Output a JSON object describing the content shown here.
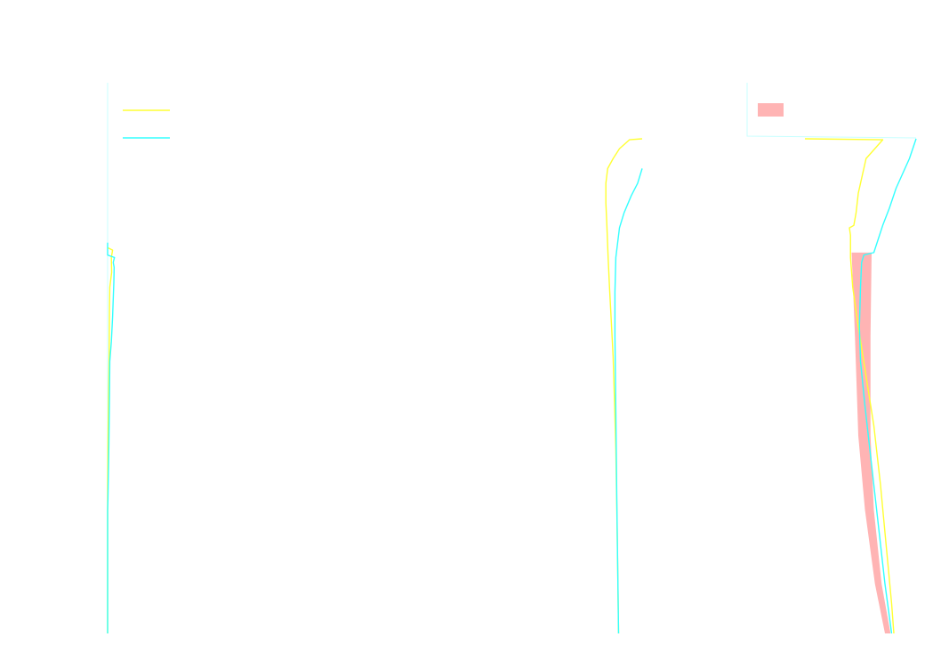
{
  "chart_data": [
    {
      "type": "line",
      "title": "",
      "xlabel": "",
      "ylabel": "",
      "xlim": [
        0,
        100
      ],
      "ylim": [
        0,
        100
      ],
      "grid": false,
      "legend": "top-left",
      "series": [
        {
          "name": "",
          "color": "#ffff33",
          "points": [
            [
              0,
              78
            ],
            [
              8,
              77.5
            ],
            [
              6,
              76
            ],
            [
              6.5,
              73
            ],
            [
              3.5,
              70
            ],
            [
              3,
              66
            ],
            [
              2.5,
              57
            ],
            [
              1.5,
              48
            ],
            [
              0.5,
              38
            ],
            [
              0,
              30
            ],
            [
              0,
              0
            ]
          ]
        },
        {
          "name": "",
          "color": "#33ffff",
          "points": [
            [
              0,
              79
            ],
            [
              0,
              76.5
            ],
            [
              11,
              76
            ],
            [
              9,
              75
            ],
            [
              10.5,
              74
            ],
            [
              10,
              71
            ],
            [
              8,
              64
            ],
            [
              6,
              59
            ],
            [
              3.5,
              55
            ],
            [
              3,
              48
            ],
            [
              2,
              38
            ],
            [
              0.5,
              27
            ],
            [
              0,
              25
            ],
            [
              0,
              0
            ]
          ]
        }
      ]
    },
    {
      "type": "line",
      "title": "",
      "xlabel": "",
      "ylabel": "",
      "xlim": [
        0,
        100
      ],
      "ylim": [
        0,
        100
      ],
      "grid": false,
      "series": [
        {
          "name": "",
          "color": "#ffff33",
          "points": [
            [
              100,
              100
            ],
            [
              86,
              99.8
            ],
            [
              75,
              98
            ],
            [
              68,
              96
            ],
            [
              62,
              94
            ],
            [
              60,
              91
            ],
            [
              60,
              87
            ],
            [
              61,
              83
            ],
            [
              62.5,
              76
            ],
            [
              64,
              70
            ],
            [
              66,
              63
            ],
            [
              68,
              56
            ],
            [
              69.5,
              47
            ],
            [
              71,
              37
            ],
            [
              72,
              26
            ],
            [
              73,
              14
            ],
            [
              74,
              0
            ]
          ]
        },
        {
          "name": "",
          "color": "#33ffff",
          "points": [
            [
              100,
              94
            ],
            [
              95,
              91
            ],
            [
              88,
              88.5
            ],
            [
              80,
              85
            ],
            [
              75,
              82
            ],
            [
              71,
              76
            ],
            [
              70,
              69
            ],
            [
              70,
              60
            ],
            [
              71,
              45
            ],
            [
              72,
              28
            ],
            [
              73,
              14
            ],
            [
              74,
              0
            ]
          ]
        }
      ]
    },
    {
      "type": "area",
      "title": "",
      "xlabel": "",
      "ylabel": "",
      "xlim": [
        0,
        100
      ],
      "ylim": [
        0,
        100
      ],
      "grid": false,
      "legend": "top-left",
      "series": [
        {
          "name": "",
          "color": "#ffff33",
          "points": [
            [
              0,
              100
            ],
            [
              70,
              99.8
            ],
            [
              55,
              96
            ],
            [
              50,
              91
            ],
            [
              48,
              89
            ],
            [
              46,
              85
            ],
            [
              44,
              82.5
            ],
            [
              40,
              82
            ],
            [
              41,
              80.5
            ],
            [
              41,
              76
            ],
            [
              43,
              70
            ],
            [
              48,
              62
            ],
            [
              55,
              52
            ],
            [
              62,
              42
            ],
            [
              68,
              30
            ],
            [
              73,
              18
            ],
            [
              78,
              6
            ],
            [
              80,
              0
            ]
          ]
        },
        {
          "name": "",
          "color": "#33ffff",
          "points": [
            [
              100,
              100
            ],
            [
              94,
              96
            ],
            [
              82,
              90
            ],
            [
              76,
              86
            ],
            [
              70,
              82.5
            ],
            [
              62,
              77
            ],
            [
              53,
              76.5
            ],
            [
              51,
              75
            ],
            [
              50,
              70
            ],
            [
              49,
              62
            ],
            [
              50,
              55
            ],
            [
              54,
              46
            ],
            [
              60,
              34
            ],
            [
              66,
              22
            ],
            [
              72,
              10
            ],
            [
              78,
              0
            ]
          ]
        },
        {
          "name": "",
          "color": "#ffb4b4",
          "band_upper": [
            [
              60,
              77
            ],
            [
              59,
              60
            ],
            [
              59,
              40
            ],
            [
              62,
              25
            ],
            [
              69,
              10
            ],
            [
              77,
              0
            ]
          ],
          "band_lower": [
            [
              42,
              77
            ],
            [
              45,
              60
            ],
            [
              48,
              40
            ],
            [
              54,
              25
            ],
            [
              63,
              10
            ],
            [
              72,
              0
            ]
          ]
        }
      ]
    }
  ]
}
